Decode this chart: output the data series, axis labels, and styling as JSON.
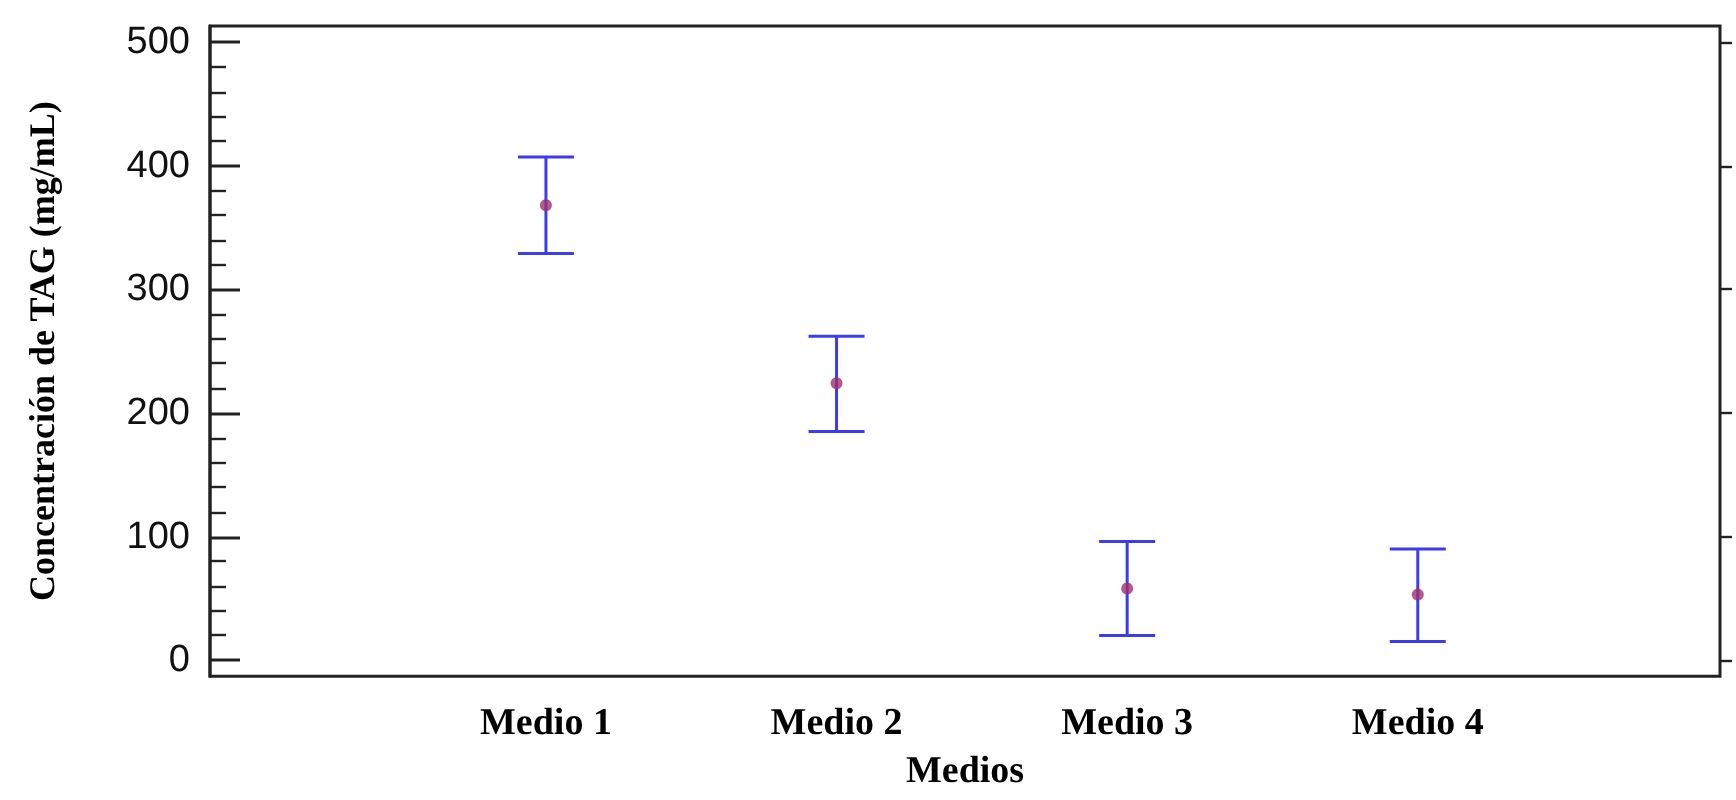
{
  "chart_data": {
    "type": "scatter",
    "xlabel": "Medios",
    "ylabel": "Concentración de TAG (mg/mL)",
    "categories": [
      "Medio 1",
      "Medio 2",
      "Medio 3",
      "Medio 4"
    ],
    "series": [
      {
        "color": "#a0306e",
        "values": [
          368,
          224,
          58,
          53
        ],
        "errors": [
          [
            329,
            407
          ],
          [
            185,
            262
          ],
          [
            20,
            96
          ],
          [
            15,
            90
          ]
        ]
      }
    ],
    "ylim": [
      -13,
      513
    ],
    "yticks": [
      0,
      100,
      200,
      300,
      400,
      500
    ],
    "marker": "circle",
    "grid": false
  }
}
